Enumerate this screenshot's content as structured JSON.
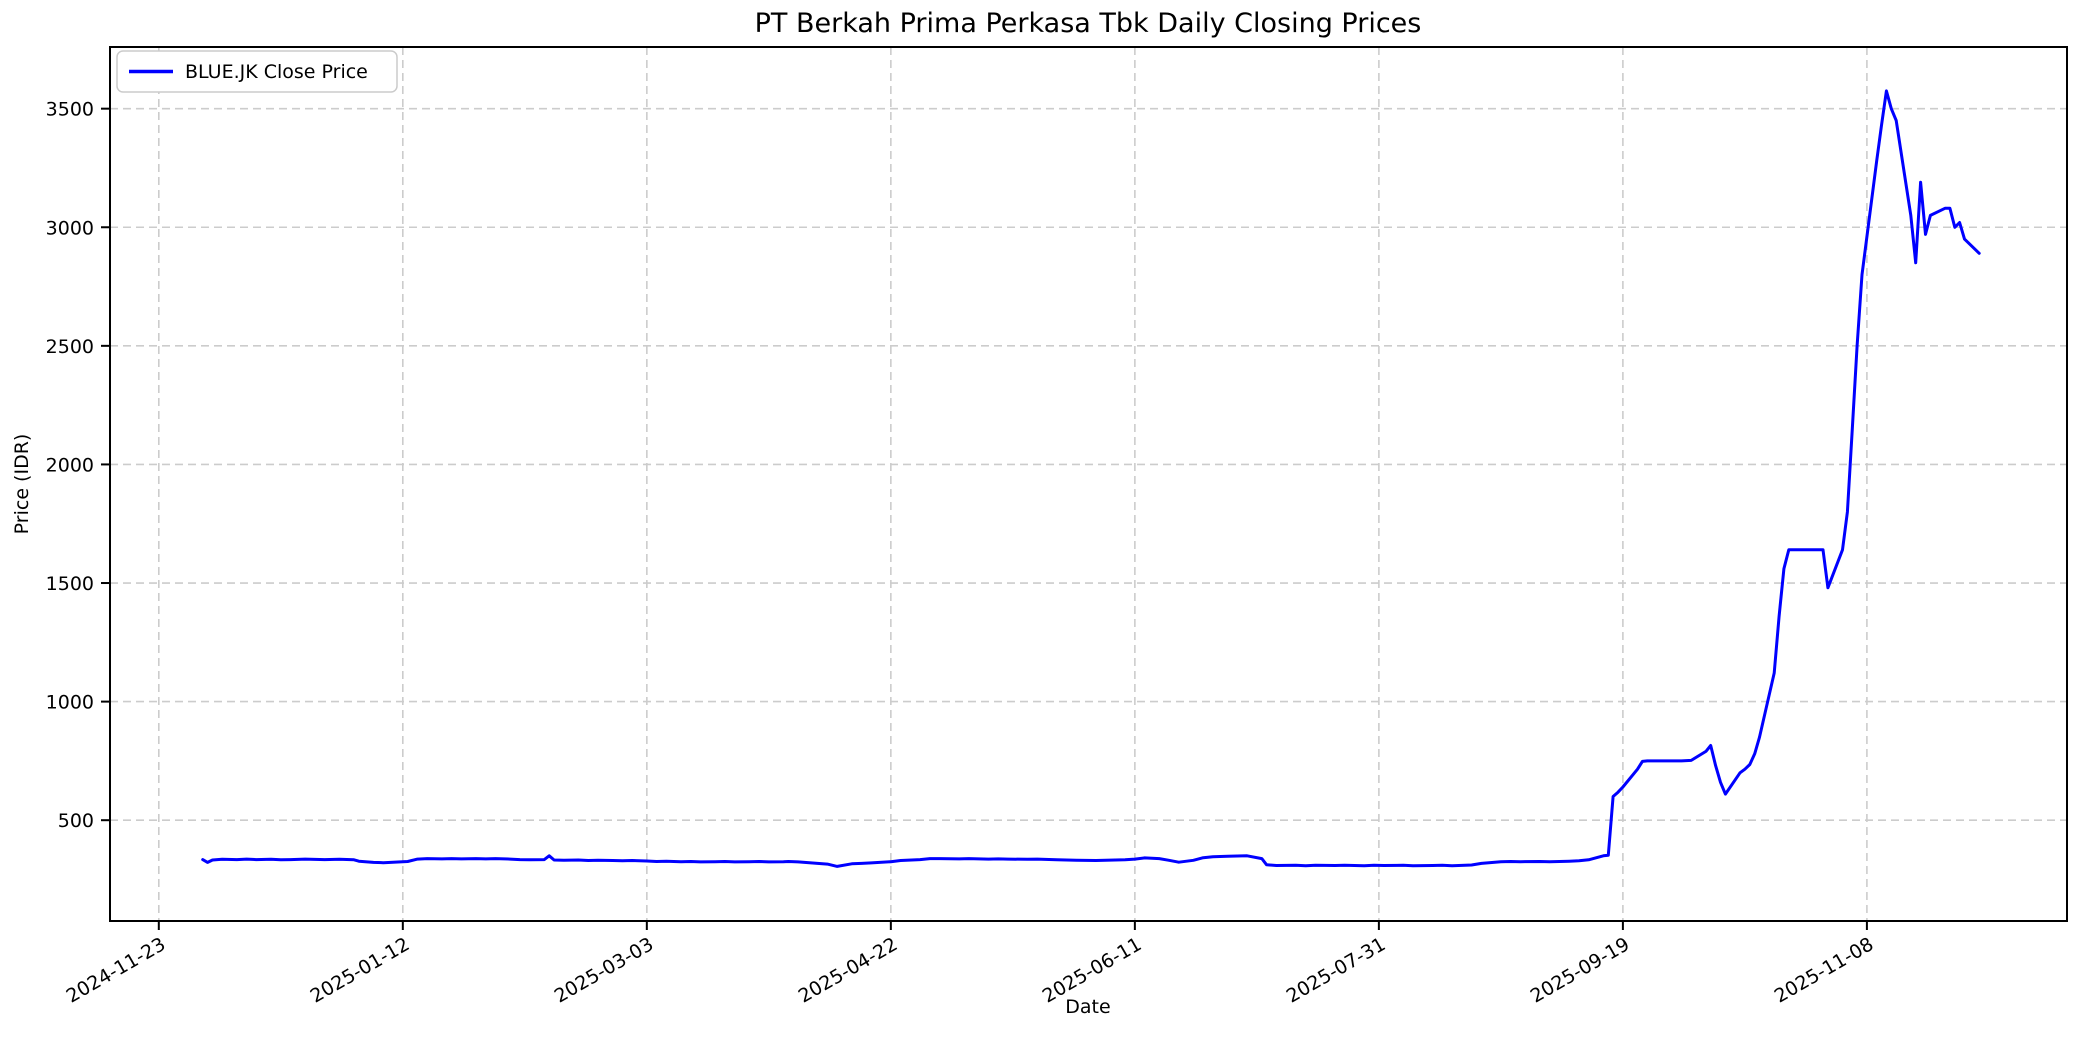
{
  "chart_data": {
    "type": "line",
    "title": "PT Berkah Prima Perkasa Tbk Daily Closing Prices",
    "xlabel": "Date",
    "ylabel": "Price (IDR)",
    "legend_label": "BLUE.JK Close Price",
    "legend_position": "upper left",
    "line_color": "#0000ff",
    "grid": true,
    "grid_style": "dashed",
    "grid_color": "#cccccc",
    "xticks": [
      "2024-11-23",
      "2025-01-12",
      "2025-03-03",
      "2025-04-22",
      "2025-06-11",
      "2025-07-31",
      "2025-09-19",
      "2025-11-08"
    ],
    "yticks": [
      500,
      1000,
      1500,
      2000,
      2500,
      3000,
      3500
    ],
    "xlim": [
      "2024-11-13",
      "2025-12-19"
    ],
    "ylim": [
      75,
      3760
    ],
    "series": [
      {
        "name": "BLUE.JK Close Price",
        "color": "#0000ff",
        "points": [
          [
            "2024-12-02",
            334
          ],
          [
            "2024-12-03",
            322
          ],
          [
            "2024-12-04",
            332
          ],
          [
            "2024-12-06",
            335
          ],
          [
            "2024-12-09",
            334
          ],
          [
            "2024-12-11",
            336
          ],
          [
            "2024-12-13",
            334
          ],
          [
            "2024-12-16",
            335
          ],
          [
            "2024-12-18",
            333
          ],
          [
            "2024-12-20",
            334
          ],
          [
            "2024-12-23",
            336
          ],
          [
            "2024-12-27",
            334
          ],
          [
            "2024-12-30",
            335
          ],
          [
            "2025-01-02",
            333
          ],
          [
            "2025-01-03",
            327
          ],
          [
            "2025-01-06",
            322
          ],
          [
            "2025-01-08",
            321
          ],
          [
            "2025-01-10",
            323
          ],
          [
            "2025-01-13",
            326
          ],
          [
            "2025-01-15",
            336
          ],
          [
            "2025-01-17",
            338
          ],
          [
            "2025-01-20",
            337
          ],
          [
            "2025-01-22",
            338
          ],
          [
            "2025-01-24",
            337
          ],
          [
            "2025-01-27",
            338
          ],
          [
            "2025-01-29",
            337
          ],
          [
            "2025-01-31",
            338
          ],
          [
            "2025-02-03",
            336
          ],
          [
            "2025-02-05",
            334
          ],
          [
            "2025-02-07",
            333
          ],
          [
            "2025-02-10",
            334
          ],
          [
            "2025-02-11",
            350
          ],
          [
            "2025-02-12",
            332
          ],
          [
            "2025-02-14",
            331
          ],
          [
            "2025-02-17",
            332
          ],
          [
            "2025-02-19",
            330
          ],
          [
            "2025-02-21",
            331
          ],
          [
            "2025-02-24",
            330
          ],
          [
            "2025-02-26",
            329
          ],
          [
            "2025-02-28",
            330
          ],
          [
            "2025-03-03",
            328
          ],
          [
            "2025-03-05",
            326
          ],
          [
            "2025-03-07",
            327
          ],
          [
            "2025-03-10",
            325
          ],
          [
            "2025-03-12",
            326
          ],
          [
            "2025-03-14",
            324
          ],
          [
            "2025-03-17",
            325
          ],
          [
            "2025-03-19",
            326
          ],
          [
            "2025-03-21",
            324
          ],
          [
            "2025-03-24",
            325
          ],
          [
            "2025-03-26",
            326
          ],
          [
            "2025-03-28",
            324
          ],
          [
            "2025-03-31",
            325
          ],
          [
            "2025-04-01",
            326
          ],
          [
            "2025-04-03",
            324
          ],
          [
            "2025-04-07",
            318
          ],
          [
            "2025-04-09",
            315
          ],
          [
            "2025-04-11",
            305
          ],
          [
            "2025-04-14",
            316
          ],
          [
            "2025-04-16",
            318
          ],
          [
            "2025-04-18",
            320
          ],
          [
            "2025-04-22",
            325
          ],
          [
            "2025-04-24",
            330
          ],
          [
            "2025-04-28",
            334
          ],
          [
            "2025-04-30",
            338
          ],
          [
            "2025-05-02",
            338
          ],
          [
            "2025-05-06",
            337
          ],
          [
            "2025-05-08",
            338
          ],
          [
            "2025-05-12",
            336
          ],
          [
            "2025-05-14",
            337
          ],
          [
            "2025-05-16",
            336
          ],
          [
            "2025-05-20",
            335
          ],
          [
            "2025-05-22",
            336
          ],
          [
            "2025-05-26",
            333
          ],
          [
            "2025-05-28",
            332
          ],
          [
            "2025-05-30",
            331
          ],
          [
            "2025-06-03",
            330
          ],
          [
            "2025-06-05",
            331
          ],
          [
            "2025-06-09",
            333
          ],
          [
            "2025-06-11",
            336
          ],
          [
            "2025-06-13",
            341
          ],
          [
            "2025-06-16",
            338
          ],
          [
            "2025-06-18",
            331
          ],
          [
            "2025-06-20",
            323
          ],
          [
            "2025-06-23",
            331
          ],
          [
            "2025-06-25",
            342
          ],
          [
            "2025-06-27",
            346
          ],
          [
            "2025-06-30",
            348
          ],
          [
            "2025-07-02",
            349
          ],
          [
            "2025-07-04",
            350
          ],
          [
            "2025-07-07",
            338
          ],
          [
            "2025-07-08",
            312
          ],
          [
            "2025-07-10",
            309
          ],
          [
            "2025-07-14",
            310
          ],
          [
            "2025-07-16",
            308
          ],
          [
            "2025-07-18",
            310
          ],
          [
            "2025-07-22",
            309
          ],
          [
            "2025-07-24",
            310
          ],
          [
            "2025-07-28",
            308
          ],
          [
            "2025-07-30",
            310
          ],
          [
            "2025-08-01",
            309
          ],
          [
            "2025-08-05",
            310
          ],
          [
            "2025-08-07",
            308
          ],
          [
            "2025-08-11",
            309
          ],
          [
            "2025-08-13",
            310
          ],
          [
            "2025-08-15",
            308
          ],
          [
            "2025-08-19",
            311
          ],
          [
            "2025-08-21",
            318
          ],
          [
            "2025-08-25",
            325
          ],
          [
            "2025-08-27",
            326
          ],
          [
            "2025-08-29",
            325
          ],
          [
            "2025-09-02",
            326
          ],
          [
            "2025-09-04",
            325
          ],
          [
            "2025-09-08",
            327
          ],
          [
            "2025-09-10",
            329
          ],
          [
            "2025-09-12",
            333
          ],
          [
            "2025-09-15",
            350
          ],
          [
            "2025-09-16",
            352
          ],
          [
            "2025-09-17",
            600
          ],
          [
            "2025-09-18",
            618
          ],
          [
            "2025-09-19",
            640
          ],
          [
            "2025-09-22",
            715
          ],
          [
            "2025-09-23",
            748
          ],
          [
            "2025-09-24",
            750
          ],
          [
            "2025-09-26",
            750
          ],
          [
            "2025-09-29",
            750
          ],
          [
            "2025-09-30",
            750
          ],
          [
            "2025-10-01",
            750
          ],
          [
            "2025-10-03",
            752
          ],
          [
            "2025-10-06",
            790
          ],
          [
            "2025-10-07",
            815
          ],
          [
            "2025-10-08",
            730
          ],
          [
            "2025-10-09",
            660
          ],
          [
            "2025-10-10",
            610
          ],
          [
            "2025-10-13",
            700
          ],
          [
            "2025-10-14",
            715
          ],
          [
            "2025-10-15",
            735
          ],
          [
            "2025-10-16",
            780
          ],
          [
            "2025-10-17",
            850
          ],
          [
            "2025-10-20",
            1120
          ],
          [
            "2025-10-21",
            1360
          ],
          [
            "2025-10-22",
            1560
          ],
          [
            "2025-10-23",
            1640
          ],
          [
            "2025-10-24",
            1640
          ],
          [
            "2025-10-27",
            1640
          ],
          [
            "2025-10-28",
            1640
          ],
          [
            "2025-10-29",
            1640
          ],
          [
            "2025-10-30",
            1640
          ],
          [
            "2025-10-31",
            1480
          ],
          [
            "2025-11-03",
            1640
          ],
          [
            "2025-11-04",
            1800
          ],
          [
            "2025-11-05",
            2150
          ],
          [
            "2025-11-06",
            2500
          ],
          [
            "2025-11-07",
            2800
          ],
          [
            "2025-11-10",
            3280
          ],
          [
            "2025-11-11",
            3430
          ],
          [
            "2025-11-12",
            3575
          ],
          [
            "2025-11-13",
            3500
          ],
          [
            "2025-11-14",
            3450
          ],
          [
            "2025-11-17",
            3050
          ],
          [
            "2025-11-18",
            2850
          ],
          [
            "2025-11-19",
            3190
          ],
          [
            "2025-11-20",
            2970
          ],
          [
            "2025-11-21",
            3050
          ],
          [
            "2025-11-24",
            3080
          ],
          [
            "2025-11-25",
            3080
          ],
          [
            "2025-11-26",
            3000
          ],
          [
            "2025-11-27",
            3020
          ],
          [
            "2025-11-28",
            2950
          ],
          [
            "2025-12-01",
            2890
          ]
        ]
      }
    ]
  }
}
